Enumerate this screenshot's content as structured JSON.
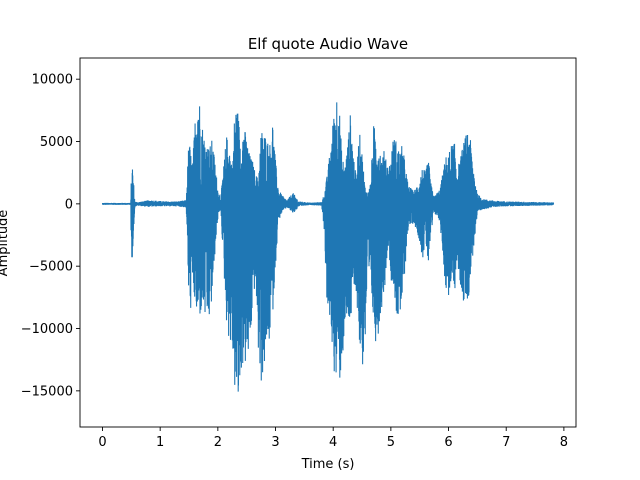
{
  "chart_data": {
    "type": "line",
    "title": "Elf quote Audio Wave",
    "xlabel": "Time (s)",
    "ylabel": "Amplitude",
    "xlim": [
      -0.39,
      8.21
    ],
    "ylim": [
      -17900,
      11700
    ],
    "xticks": [
      0,
      1,
      2,
      3,
      4,
      5,
      6,
      7,
      8
    ],
    "yticks": [
      -15000,
      -10000,
      -5000,
      0,
      5000,
      10000
    ],
    "xtick_labels": [
      "0",
      "1",
      "2",
      "3",
      "4",
      "5",
      "6",
      "7",
      "8"
    ],
    "ytick_labels": [
      "−15000",
      "−10000",
      "−5000",
      "0",
      "5000",
      "10000"
    ],
    "grid": false,
    "color": "#1f77b4",
    "duration_s": 7.82,
    "envelope": {
      "x": [
        0.0,
        0.49,
        0.5,
        0.52,
        0.54,
        0.56,
        0.6,
        0.7,
        0.8,
        0.95,
        1.1,
        1.3,
        1.45,
        1.48,
        1.5,
        1.53,
        1.56,
        1.6,
        1.65,
        1.7,
        1.75,
        1.8,
        1.85,
        1.9,
        1.95,
        2.0,
        2.05,
        2.1,
        2.15,
        2.2,
        2.25,
        2.3,
        2.35,
        2.4,
        2.45,
        2.5,
        2.55,
        2.6,
        2.65,
        2.7,
        2.75,
        2.8,
        2.85,
        2.9,
        2.95,
        3.0,
        3.05,
        3.1,
        3.15,
        3.2,
        3.25,
        3.3,
        3.35,
        3.4,
        3.5,
        3.6,
        3.7,
        3.8,
        3.85,
        3.9,
        3.95,
        4.0,
        4.05,
        4.1,
        4.15,
        4.2,
        4.25,
        4.3,
        4.35,
        4.4,
        4.45,
        4.5,
        4.55,
        4.6,
        4.65,
        4.7,
        4.75,
        4.8,
        4.85,
        4.9,
        4.95,
        5.0,
        5.05,
        5.1,
        5.15,
        5.2,
        5.3,
        5.4,
        5.5,
        5.55,
        5.6,
        5.65,
        5.7,
        5.75,
        5.8,
        5.85,
        5.9,
        5.95,
        6.0,
        6.05,
        6.1,
        6.15,
        6.2,
        6.25,
        6.3,
        6.35,
        6.4,
        6.45,
        6.5,
        6.6,
        6.8,
        7.0,
        7.2,
        7.5,
        7.82
      ],
      "upper": [
        80,
        80,
        2400,
        3200,
        1800,
        200,
        150,
        200,
        300,
        250,
        200,
        200,
        300,
        3500,
        5300,
        4200,
        3000,
        6500,
        10300,
        7500,
        5800,
        5000,
        4500,
        5200,
        3500,
        1200,
        500,
        3000,
        5500,
        4800,
        3000,
        8200,
        7500,
        5000,
        6500,
        5200,
        4000,
        3500,
        2500,
        2000,
        6000,
        5800,
        5300,
        4800,
        6800,
        3500,
        1200,
        800,
        500,
        300,
        600,
        900,
        600,
        200,
        150,
        100,
        120,
        150,
        900,
        2500,
        4500,
        6800,
        9200,
        8500,
        4000,
        3000,
        4800,
        7400,
        4200,
        2000,
        6000,
        4200,
        1500,
        800,
        1800,
        6400,
        5600,
        4800,
        3600,
        4700,
        2800,
        3800,
        5600,
        5000,
        4200,
        4800,
        1500,
        1000,
        2000,
        3000,
        2500,
        3700,
        1500,
        600,
        900,
        1200,
        2500,
        3800,
        4000,
        4800,
        5000,
        3000,
        3500,
        4800,
        5500,
        6500,
        4200,
        2500,
        800,
        400,
        250,
        200,
        180,
        150,
        120
      ],
      "lower": [
        -80,
        -80,
        -4800,
        -4200,
        -2500,
        -250,
        -150,
        -200,
        -250,
        -200,
        -200,
        -200,
        -300,
        -4500,
        -9500,
        -8500,
        -7500,
        -8000,
        -9800,
        -9000,
        -8500,
        -10000,
        -9500,
        -8000,
        -4000,
        -1200,
        -500,
        -5000,
        -9500,
        -11200,
        -12000,
        -15500,
        -16800,
        -14000,
        -12500,
        -13500,
        -12000,
        -9000,
        -6000,
        -12000,
        -14500,
        -13500,
        -12000,
        -11000,
        -9000,
        -5000,
        -1500,
        -800,
        -500,
        -300,
        -500,
        -800,
        -600,
        -200,
        -150,
        -100,
        -120,
        -150,
        -2500,
        -10000,
        -9000,
        -13000,
        -14500,
        -15000,
        -13000,
        -11000,
        -9500,
        -10000,
        -8000,
        -7000,
        -11500,
        -13500,
        -12000,
        -7000,
        -6500,
        -10000,
        -11500,
        -9800,
        -8000,
        -6500,
        -3000,
        -6000,
        -7000,
        -9000,
        -10000,
        -8000,
        -2000,
        -1500,
        -3000,
        -4500,
        -3000,
        -5000,
        -2500,
        -800,
        -1000,
        -1500,
        -4000,
        -7000,
        -7500,
        -6500,
        -7500,
        -5000,
        -6500,
        -8000,
        -7800,
        -7500,
        -5000,
        -3000,
        -900,
        -450,
        -250,
        -200,
        -180,
        -150,
        -120
      ]
    }
  }
}
